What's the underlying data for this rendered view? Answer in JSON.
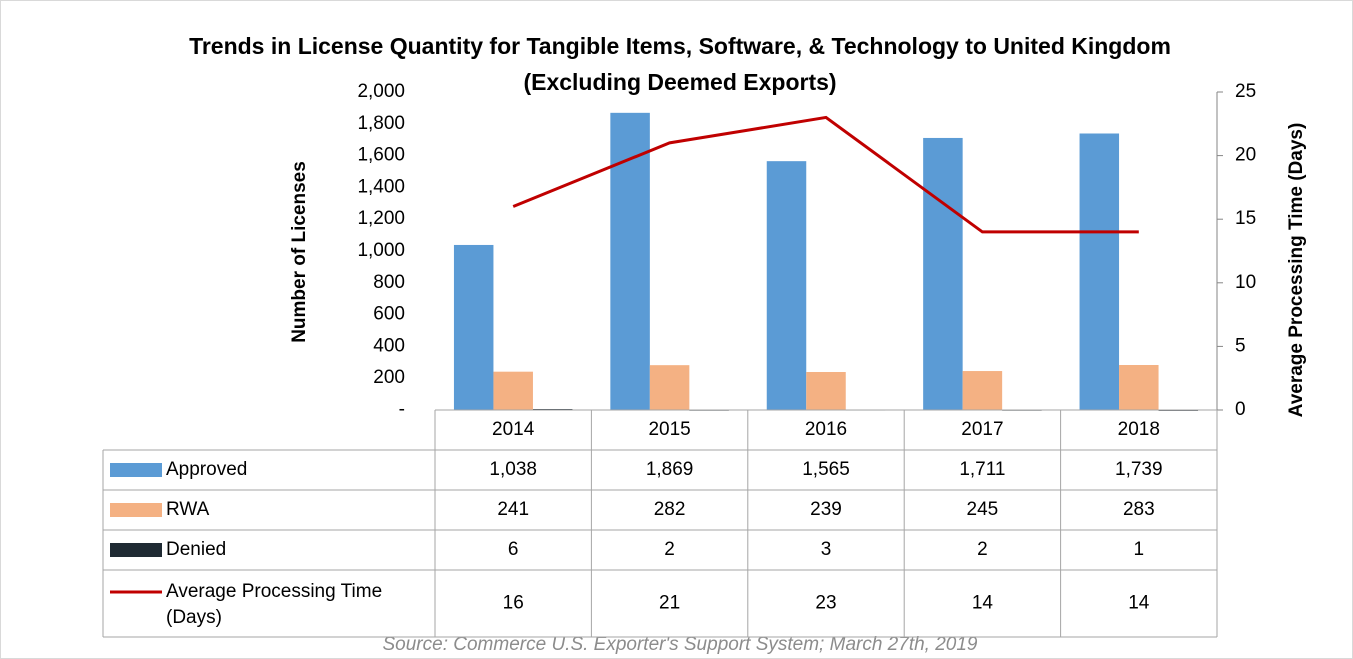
{
  "chart_data": {
    "type": "bar",
    "title": "Trends in License Quantity for Tangible Items, Software, & Technology to United Kingdom (Excluding Deemed Exports)",
    "ylabel": "Number of Licenses",
    "y2label": "Average Processing Time (Days)",
    "source": "Source: Commerce U.S. Exporter's Support System; March 27th, 2019",
    "categories": [
      "2014",
      "2015",
      "2016",
      "2017",
      "2018"
    ],
    "ylim": [
      0,
      2000
    ],
    "yticks": [
      {
        "value": 0,
        "label": "-"
      },
      200,
      400,
      600,
      800,
      {
        "value": 1000,
        "label": "1,000"
      },
      {
        "value": 1200,
        "label": "1,200"
      },
      {
        "value": 1400,
        "label": "1,400"
      },
      {
        "value": 1600,
        "label": "1,600"
      },
      {
        "value": 1800,
        "label": "1,800"
      },
      {
        "value": 2000,
        "label": "2,000"
      }
    ],
    "y2lim": [
      0,
      25
    ],
    "y2ticks": [
      0,
      5,
      10,
      15,
      20,
      25
    ],
    "series": [
      {
        "name": "Approved",
        "color": "#5b9bd5",
        "values": [
          1038,
          1869,
          1565,
          1711,
          1739
        ],
        "value_labels": [
          "1,038",
          "1,869",
          "1,565",
          "1,711",
          "1,739"
        ]
      },
      {
        "name": "RWA",
        "color": "#f4b183",
        "values": [
          241,
          282,
          239,
          245,
          283
        ]
      },
      {
        "name": "Denied",
        "color": "#1f2a33",
        "values": [
          6,
          2,
          3,
          2,
          1
        ]
      },
      {
        "name": "Average Processing Time (Days)",
        "type": "line",
        "axis": "y2",
        "color": "#c00000",
        "values": [
          16,
          21,
          23,
          14,
          14
        ]
      }
    ]
  }
}
